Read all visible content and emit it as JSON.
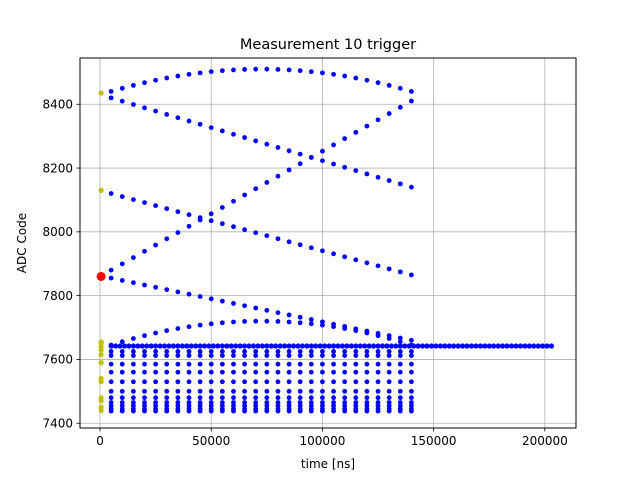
{
  "chart_data": {
    "type": "scatter",
    "title": "Measurement 10 trigger",
    "xlabel": "time [ns]",
    "ylabel": "ADC Code",
    "xlim": [
      -9000,
      214000
    ],
    "ylim": [
      7385,
      8545
    ],
    "xticks": [
      0,
      50000,
      100000,
      150000,
      200000
    ],
    "xtick_labels": [
      "0",
      "50000",
      "100000",
      "150000",
      "200000"
    ],
    "yticks": [
      7400,
      7600,
      7800,
      8000,
      8200,
      8400
    ],
    "ytick_labels": [
      "7400",
      "7600",
      "7800",
      "8000",
      "8200",
      "8400"
    ],
    "grid": true,
    "colors": {
      "main": "#0000ff",
      "start": "#bfbf00",
      "trigger": "#ff0000",
      "grid": "#b0b0b0"
    },
    "series": [
      {
        "kind": "line-dotted",
        "color": "#0000ff",
        "x_start": 5000,
        "x_end": 204000,
        "step": 2000,
        "y": 7642
      },
      {
        "kind": "arc",
        "color": "#0000ff",
        "x_start": 5000,
        "x_end": 140000,
        "step": 5000,
        "y_start": 8440,
        "y_peak": 8510,
        "y_end": 8440
      },
      {
        "kind": "diagonal",
        "color": "#0000ff",
        "x_start": 5000,
        "x_end": 140000,
        "step": 5000,
        "y_start": 8420,
        "y_end": 8140
      },
      {
        "kind": "diagonal",
        "color": "#0000ff",
        "x_start": 5000,
        "x_end": 140000,
        "step": 5000,
        "y_start": 7880,
        "y_end": 8410
      },
      {
        "kind": "diagonal",
        "color": "#0000ff",
        "x_start": 5000,
        "x_end": 140000,
        "step": 5000,
        "y_start": 8120,
        "y_end": 7865
      },
      {
        "kind": "diagonal",
        "color": "#0000ff",
        "x_start": 5000,
        "x_end": 140000,
        "step": 5000,
        "y_start": 7855,
        "y_end": 7660
      },
      {
        "kind": "arc",
        "color": "#0000ff",
        "x_start": 5000,
        "x_end": 140000,
        "step": 5000,
        "y_start": 7645,
        "y_peak": 7720,
        "y_end": 7645
      },
      {
        "kind": "flat-rows",
        "color": "#0000ff",
        "x_start": 5000,
        "x_end": 140000,
        "step": 5000,
        "rows": [
          7625,
          7612,
          7585,
          7560,
          7530,
          7500,
          7480,
          7465,
          7455,
          7445,
          7438
        ]
      },
      {
        "kind": "points",
        "color": "#bfbf00",
        "x": [
          500,
          500,
          500,
          500,
          500,
          500,
          500,
          500,
          500,
          500,
          500,
          500,
          500,
          500
        ],
        "y": [
          8435,
          8130,
          7655,
          7650,
          7640,
          7630,
          7615,
          7590,
          7540,
          7530,
          7480,
          7470,
          7450,
          7440
        ]
      },
      {
        "kind": "points",
        "color": "#ff0000",
        "size": 4.5,
        "x": [
          500
        ],
        "y": [
          7860
        ]
      }
    ]
  }
}
